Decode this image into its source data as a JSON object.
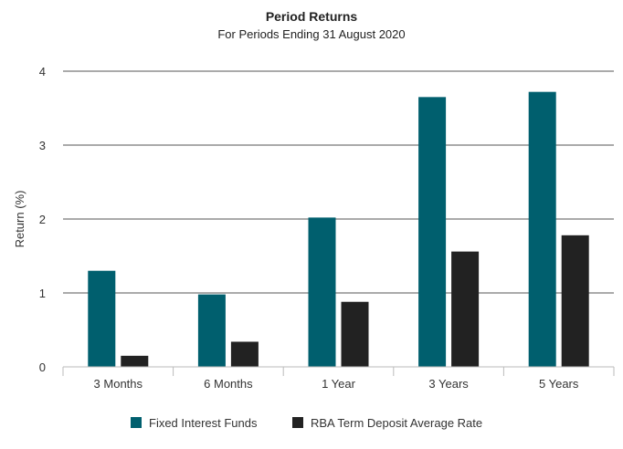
{
  "chart_data": {
    "type": "bar",
    "title": "Period Returns",
    "subtitle": "For Periods Ending 31 August 2020",
    "xlabel": "",
    "ylabel": "Return (%)",
    "ylim": [
      0,
      4
    ],
    "yticks": [
      "0",
      "1",
      "2",
      "3",
      "4"
    ],
    "grid": true,
    "legend_position": "bottom",
    "categories": [
      "3 Months",
      "6 Months",
      "1 Year",
      "3 Years",
      "5 Years"
    ],
    "series": [
      {
        "name": "Fixed Interest Funds",
        "color": "#005f6e",
        "values": [
          1.3,
          0.98,
          2.02,
          3.65,
          3.72
        ]
      },
      {
        "name": "RBA Term Deposit Average Rate",
        "color": "#222222",
        "values": [
          0.15,
          0.34,
          0.88,
          1.56,
          1.78
        ]
      }
    ]
  }
}
